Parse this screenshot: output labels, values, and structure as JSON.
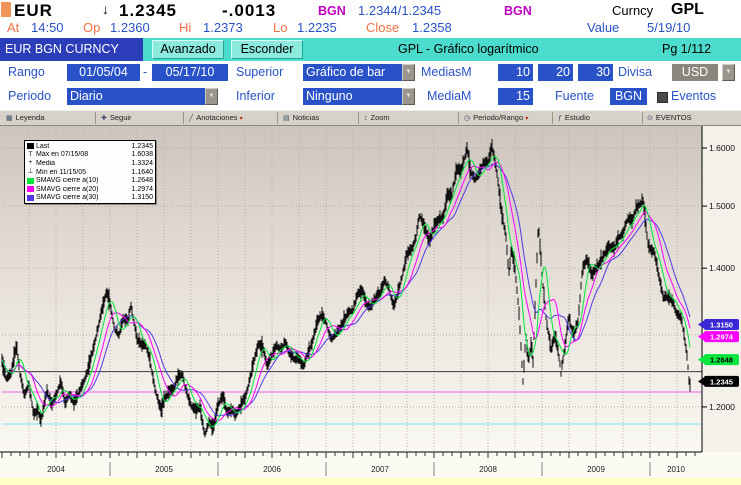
{
  "quote_bar": {
    "ticker": "EUR",
    "direction_arrow": "↓",
    "last": "1.2345",
    "change": "-.0013",
    "source_a": "BGN",
    "bid_ask": "1.2344/1.2345",
    "source_b": "BGN",
    "market_sector": "Curncy",
    "function_code": "GPL"
  },
  "stats_bar": {
    "at_label": "At",
    "at_time": "14:50",
    "open_label": "Op",
    "open": "1.2360",
    "high_label": "Hi",
    "high": "1.2373",
    "low_label": "Lo",
    "low": "1.2235",
    "close_label": "Close",
    "close": "1.2358",
    "value_label": "Value",
    "value_date": "5/19/10"
  },
  "title_bar": {
    "security": "EUR BGN CURNCY",
    "advanced_button": "Avanzado",
    "hide_button": "Esconder",
    "screen_title": "GPL - Gráfico logarítmico",
    "page": "Pg 1/112"
  },
  "controls": {
    "rango_label": "Rango",
    "rango_start": "01/05/04",
    "rango_separator": "-",
    "rango_end": "05/17/10",
    "superior_label": "Superior",
    "superior_value": "Gráfico de bar",
    "mediasm_label": "MediasM",
    "mediasm_1": "10",
    "mediasm_2": "20",
    "mediasm_3": "30",
    "divisa_label": "Divisa",
    "divisa_value": "USD",
    "periodo_label": "Periodo",
    "periodo_value": "Diario",
    "inferior_label": "Inferior",
    "inferior_value": "Ninguno",
    "mediam_label": "MediaM",
    "mediam_value": "15",
    "fuente_label": "Fuente",
    "fuente_value": "BGN",
    "eventos_label": "Eventos",
    "dropdown_glyph": "▼"
  },
  "toolbar": {
    "items": [
      {
        "glyph": "▦",
        "label": "Leyenda",
        "dropdown": false
      },
      {
        "glyph": "✚",
        "label": "Seguir",
        "dropdown": false
      },
      {
        "glyph": "╱",
        "label": "Anotaciones",
        "dropdown": true
      },
      {
        "glyph": "▤",
        "label": "Noticias",
        "dropdown": false
      },
      {
        "glyph": "↕",
        "label": "Zoom",
        "dropdown": false
      },
      {
        "glyph": "◷",
        "label": "Periodo/Rango",
        "dropdown": true
      },
      {
        "glyph": "ƒ",
        "label": "Estudio",
        "dropdown": false
      },
      {
        "glyph": "⊙",
        "label": "EVENTOS",
        "dropdown": false
      }
    ]
  },
  "legend": {
    "rows": [
      {
        "marker": "swatch",
        "color": "#000000",
        "label": "Last",
        "value": "1.2345"
      },
      {
        "marker": "T",
        "color": "#000000",
        "label": "Máx en 07/15/08",
        "value": "1.6038"
      },
      {
        "marker": "+",
        "color": "#000000",
        "label": "Media",
        "value": "1.3324"
      },
      {
        "marker": "⊥",
        "color": "#000000",
        "label": "Mín en 11/15/05",
        "value": "1.1640"
      },
      {
        "marker": "swatch",
        "color": "#00e63c",
        "label": "SMAVG cierre a(10)",
        "value": "1.2648"
      },
      {
        "marker": "swatch",
        "color": "#ff00ff",
        "label": "SMAVG cierre a(20)",
        "value": "1.2974"
      },
      {
        "marker": "swatch",
        "color": "#5238e6",
        "label": "SMAVG cierre a(30)",
        "value": "1.3150"
      }
    ]
  },
  "colors": {
    "label_blue": "#2a52c8",
    "field_blue": "#2a52c8",
    "orange": "#ef7143",
    "magenta": "#c000c0",
    "cyan_bar": "#4cdccd",
    "cyan_button": "#8ceadf",
    "security_blue": "#2b3db8",
    "toolbar_gray": "#d6d2ca",
    "bottom_yellow": "#ffffc8",
    "sma10_green": "#00e63c",
    "sma20_magenta": "#ff00ff",
    "sma30_blue": "#5238e6"
  },
  "chart_data": {
    "type": "bar",
    "instrument": "EUR/USD",
    "scale": "log",
    "date_start": "01/05/04",
    "date_end": "05/17/10",
    "x_year_labels": [
      "2004",
      "2005",
      "2006",
      "2007",
      "2008",
      "2009",
      "2010"
    ],
    "y_axis_labels": [
      {
        "text": "1.6000",
        "value": 1.6
      },
      {
        "text": "1.5000",
        "value": 1.5
      },
      {
        "text": "1.4000",
        "value": 1.4
      },
      {
        "text": "1.2000",
        "value": 1.2
      }
    ],
    "y_gridline_values": [
      1.2,
      1.3,
      1.4,
      1.5,
      1.6
    ],
    "ylim": [
      1.141,
      1.636
    ],
    "last": 1.2345,
    "max": 1.6038,
    "max_date": "07/15/08",
    "media": 1.3324,
    "min": 1.164,
    "min_date": "11/15/05",
    "smavg": {
      "periods": [
        10,
        20,
        30
      ],
      "values": [
        1.2648,
        1.2974,
        1.315
      ],
      "colors": [
        "#00e63c",
        "#ff00ff",
        "#5238e6"
      ]
    },
    "price_tags": [
      {
        "text": "1.3150",
        "value": 1.315,
        "bg": "#3a28d4",
        "fg": "#ffffff"
      },
      {
        "text": "1.2974",
        "value": 1.2974,
        "bg": "#ff00ff",
        "fg": "#ffffff"
      },
      {
        "text": "1.2648",
        "value": 1.2648,
        "bg": "#00e63c",
        "fg": "#000000"
      },
      {
        "text": "1.2345",
        "value": 1.2345,
        "bg": "#000000",
        "fg": "#ffffff"
      }
    ],
    "annotation_lines": [
      {
        "value": 1.248,
        "color": "#3a3a3a"
      },
      {
        "value": 1.22,
        "color": "#f05ef0"
      },
      {
        "value": 1.1775,
        "color": "#7de9ef"
      }
    ],
    "monthly_anchors": [
      [
        0,
        1.262
      ],
      [
        0.5,
        1.238
      ],
      [
        1,
        1.245
      ],
      [
        1.6,
        1.286
      ],
      [
        2,
        1.245
      ],
      [
        2.5,
        1.216
      ],
      [
        3,
        1.232
      ],
      [
        3.5,
        1.19
      ],
      [
        4,
        1.197
      ],
      [
        4.3,
        1.18
      ],
      [
        5,
        1.222
      ],
      [
        5.5,
        1.204
      ],
      [
        6,
        1.215
      ],
      [
        6.5,
        1.235
      ],
      [
        7,
        1.205
      ],
      [
        7.5,
        1.218
      ],
      [
        8,
        1.205
      ],
      [
        8.5,
        1.218
      ],
      [
        9,
        1.232
      ],
      [
        9.5,
        1.248
      ],
      [
        10,
        1.274
      ],
      [
        10.5,
        1.3
      ],
      [
        11,
        1.33
      ],
      [
        11.6,
        1.363
      ],
      [
        12,
        1.346
      ],
      [
        12.5,
        1.31
      ],
      [
        13,
        1.3
      ],
      [
        13.5,
        1.325
      ],
      [
        14,
        1.32
      ],
      [
        14.3,
        1.345
      ],
      [
        15,
        1.295
      ],
      [
        15.5,
        1.285
      ],
      [
        16,
        1.285
      ],
      [
        16.5,
        1.26
      ],
      [
        17,
        1.225
      ],
      [
        17.7,
        1.194
      ],
      [
        18,
        1.21
      ],
      [
        18.5,
        1.22
      ],
      [
        19,
        1.222
      ],
      [
        19.5,
        1.24
      ],
      [
        20,
        1.245
      ],
      [
        20.5,
        1.22
      ],
      [
        21,
        1.203
      ],
      [
        21.5,
        1.196
      ],
      [
        22,
        1.2
      ],
      [
        22.5,
        1.164
      ],
      [
        23,
        1.18
      ],
      [
        23.5,
        1.172
      ],
      [
        24,
        1.203
      ],
      [
        24.5,
        1.215
      ],
      [
        25,
        1.193
      ],
      [
        25.5,
        1.197
      ],
      [
        26,
        1.19
      ],
      [
        26.5,
        1.202
      ],
      [
        27,
        1.212
      ],
      [
        27.5,
        1.235
      ],
      [
        28,
        1.263
      ],
      [
        28.5,
        1.288
      ],
      [
        29,
        1.28
      ],
      [
        29.5,
        1.255
      ],
      [
        30,
        1.272
      ],
      [
        30.5,
        1.285
      ],
      [
        31,
        1.28
      ],
      [
        31.5,
        1.29
      ],
      [
        32,
        1.273
      ],
      [
        32.5,
        1.266
      ],
      [
        33,
        1.267
      ],
      [
        33.5,
        1.255
      ],
      [
        34,
        1.276
      ],
      [
        34.5,
        1.29
      ],
      [
        35,
        1.317
      ],
      [
        35.5,
        1.33
      ],
      [
        36,
        1.32
      ],
      [
        36.5,
        1.295
      ],
      [
        37,
        1.3
      ],
      [
        37.5,
        1.31
      ],
      [
        38,
        1.32
      ],
      [
        38.5,
        1.335
      ],
      [
        39,
        1.337
      ],
      [
        39.5,
        1.36
      ],
      [
        40,
        1.365
      ],
      [
        40.5,
        1.345
      ],
      [
        41,
        1.342
      ],
      [
        41.5,
        1.355
      ],
      [
        42,
        1.362
      ],
      [
        42.5,
        1.382
      ],
      [
        43,
        1.37
      ],
      [
        43.5,
        1.34
      ],
      [
        44,
        1.363
      ],
      [
        44.5,
        1.39
      ],
      [
        45,
        1.423
      ],
      [
        45.5,
        1.43
      ],
      [
        46,
        1.448
      ],
      [
        46.4,
        1.487
      ],
      [
        47,
        1.463
      ],
      [
        47.5,
        1.44
      ],
      [
        48,
        1.468
      ],
      [
        48.5,
        1.478
      ],
      [
        49,
        1.48
      ],
      [
        49.5,
        1.52
      ],
      [
        50,
        1.52
      ],
      [
        50.5,
        1.565
      ],
      [
        51,
        1.56
      ],
      [
        51.7,
        1.601
      ],
      [
        52,
        1.562
      ],
      [
        52.5,
        1.545
      ],
      [
        53,
        1.555
      ],
      [
        53.5,
        1.575
      ],
      [
        54,
        1.575
      ],
      [
        54.45,
        1.6038
      ],
      [
        55,
        1.555
      ],
      [
        55.5,
        1.49
      ],
      [
        56,
        1.45
      ],
      [
        56.3,
        1.39
      ],
      [
        56.6,
        1.43
      ],
      [
        57,
        1.4
      ],
      [
        57.4,
        1.34
      ],
      [
        57.9,
        1.233
      ],
      [
        58.2,
        1.3
      ],
      [
        58.5,
        1.26
      ],
      [
        58.8,
        1.29
      ],
      [
        59,
        1.26
      ],
      [
        59.6,
        1.47
      ],
      [
        60,
        1.39
      ],
      [
        60.5,
        1.32
      ],
      [
        61,
        1.28
      ],
      [
        61.5,
        1.3
      ],
      [
        62,
        1.26
      ],
      [
        62.1,
        1.2457
      ],
      [
        62.5,
        1.28
      ],
      [
        63,
        1.325
      ],
      [
        63.5,
        1.3
      ],
      [
        64,
        1.32
      ],
      [
        64.5,
        1.4
      ],
      [
        65,
        1.415
      ],
      [
        65.5,
        1.39
      ],
      [
        66,
        1.4
      ],
      [
        66.5,
        1.41
      ],
      [
        67,
        1.425
      ],
      [
        67.5,
        1.435
      ],
      [
        68,
        1.43
      ],
      [
        68.5,
        1.45
      ],
      [
        69,
        1.455
      ],
      [
        69.5,
        1.48
      ],
      [
        70,
        1.475
      ],
      [
        70.5,
        1.5
      ],
      [
        71,
        1.505
      ],
      [
        71.2,
        1.512
      ],
      [
        71.8,
        1.435
      ],
      [
        72,
        1.432
      ],
      [
        72.5,
        1.425
      ],
      [
        73,
        1.386
      ],
      [
        73.5,
        1.355
      ],
      [
        74,
        1.357
      ],
      [
        74.5,
        1.35
      ],
      [
        75,
        1.33
      ],
      [
        75.5,
        1.325
      ],
      [
        76,
        1.28
      ],
      [
        76.2,
        1.26
      ],
      [
        76.4,
        1.2235
      ],
      [
        76.5,
        1.2345
      ]
    ]
  }
}
